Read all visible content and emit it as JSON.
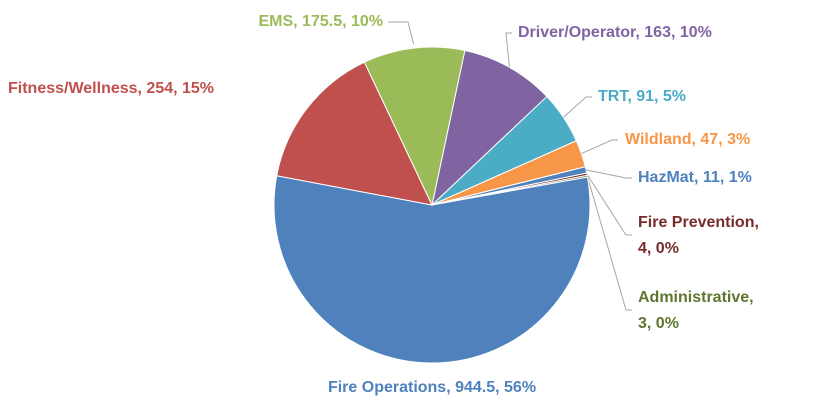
{
  "chart_data": {
    "type": "pie",
    "labels": [
      "Driver/Operator, 163, 10%",
      "TRT, 91, 5%",
      "Wildland, 47, 3%",
      "HazMat, 11, 1%",
      "Fire Prevention, 4, 0%",
      "Administrative, 3, 0%",
      "Fire Operations, 944.5, 56%",
      "Fitness/Wellness, 254, 15%",
      "EMS, 175.5, 10%"
    ],
    "values": [
      163,
      91,
      47,
      11,
      4,
      3,
      944.5,
      254,
      175.5
    ],
    "colors": [
      "#8064a2",
      "#4bacc6",
      "#f79646",
      "#4f81bd",
      "#772c2a",
      "#5f7530",
      "#4f81bd",
      "#c0504d",
      "#9bbb59"
    ],
    "label_colors": [
      "#8064a2",
      "#4bacc6",
      "#f79646",
      "#4f81bd",
      "#772c2a",
      "#5f7530",
      "#4f81bd",
      "#c0504d",
      "#9bbb59"
    ]
  }
}
